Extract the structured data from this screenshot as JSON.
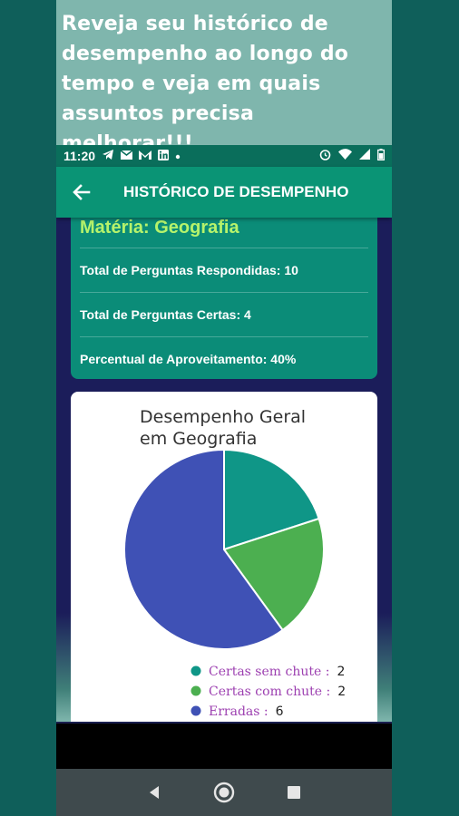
{
  "promo": {
    "text": "Reveja seu histórico de desempenho ao longo do tempo e veja em quais assuntos precisa melhorar!!!"
  },
  "status_bar": {
    "time": "11:20",
    "icons_left": [
      "telegram-icon",
      "mail-icon",
      "gmail-icon",
      "linkedin-icon",
      "dot-icon"
    ],
    "icons_right": [
      "alarm-icon",
      "wifi-icon",
      "signal-icon",
      "battery-icon"
    ]
  },
  "app_bar": {
    "title": "HISTÓRICO DE DESEMPENHO",
    "back_icon": "arrow-back-icon"
  },
  "summary": {
    "subject": "Matéria: Geografia",
    "total_answered": "Total de Perguntas Respondidas: 10",
    "total_correct": "Total de Perguntas Certas: 4",
    "percent": "Percentual de Aproveitamento: 40%"
  },
  "colors": {
    "accent": "#0a9475",
    "subject": "#b6f36b",
    "slice_1": "#0f9687",
    "slice_2": "#4caf50",
    "slice_3": "#3f51b5"
  },
  "chart_data": {
    "type": "pie",
    "title": "Desempenho Geral em Geografia",
    "title_lines": [
      "Desempenho Geral",
      "em Geografia"
    ],
    "slices": [
      {
        "label": "Certas sem chute :",
        "value": 2,
        "color": "#0f9687"
      },
      {
        "label": "Certas com chute :",
        "value": 2,
        "color": "#4caf50"
      },
      {
        "label": "Erradas :",
        "value": 6,
        "color": "#3f51b5"
      }
    ],
    "legend_position": "bottom-right"
  },
  "nav": {
    "back": "back-triangle-icon",
    "home": "home-circle-icon",
    "recents": "recents-square-icon"
  }
}
